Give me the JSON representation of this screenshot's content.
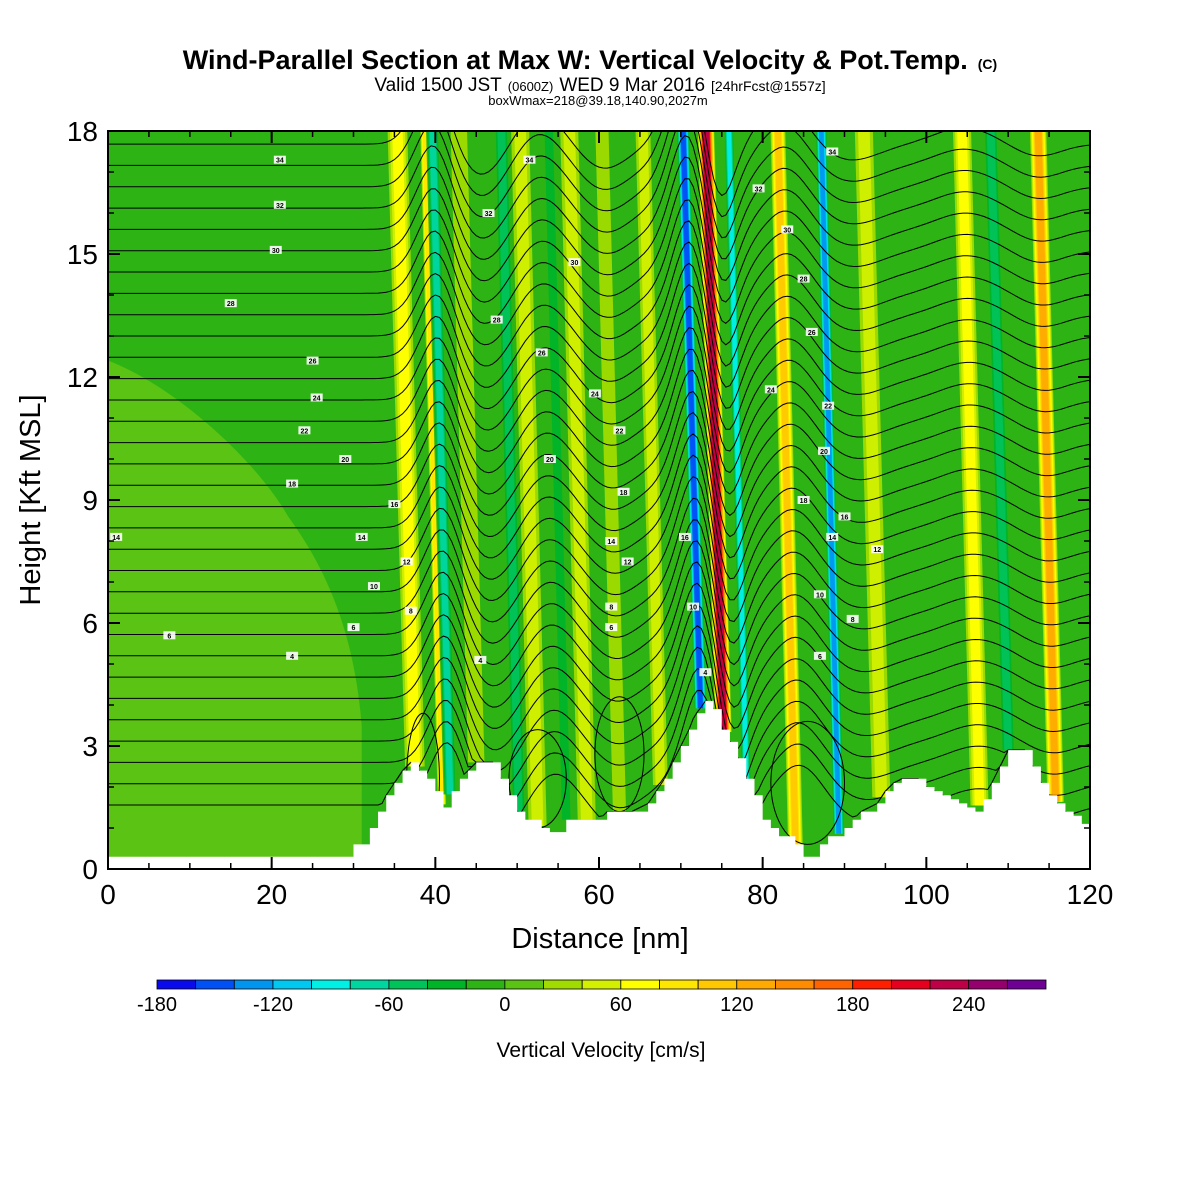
{
  "title": {
    "main": "Wind-Parallel Section at Max W: Vertical Velocity & Pot.Temp.",
    "copyright": "(C)",
    "valid": "Valid 1500 JST",
    "utc": "(0600Z)",
    "date": "WED 9 Mar 2016",
    "forecast": "[24hrFcst@1557z]",
    "boxinfo": "boxWmax=218@39.18,140.90,2027m"
  },
  "chart_data": {
    "type": "heatmap",
    "title": "Wind-Parallel Section at Max W: Vertical Velocity & Pot.Temp.",
    "xlabel": "Distance [nm]",
    "ylabel": "Height [Kft MSL]",
    "xlim": [
      0,
      120
    ],
    "ylim": [
      0,
      18
    ],
    "x_ticks": [
      0,
      20,
      40,
      60,
      80,
      100,
      120
    ],
    "y_ticks": [
      0,
      3,
      6,
      9,
      12,
      15,
      18
    ],
    "colorbar": {
      "title": "Vertical Velocity [cm/s]",
      "min": -180,
      "step": 20,
      "tick_labels": [
        "-180",
        "-120",
        "-60",
        "0",
        "60",
        "120",
        "180",
        "240"
      ],
      "tick_values": [
        -180,
        -120,
        -60,
        0,
        60,
        120,
        180,
        240
      ],
      "colors": [
        "#0a0aee",
        "#0050f5",
        "#0096f0",
        "#00c8f0",
        "#00f0e6",
        "#00d7a0",
        "#00c35a",
        "#00b428",
        "#2db414",
        "#5ac314",
        "#a0dc00",
        "#d2f000",
        "#ffff00",
        "#ffe600",
        "#ffc800",
        "#ffaa00",
        "#ff8c00",
        "#ff6400",
        "#ff1e00",
        "#e6001e",
        "#be0046",
        "#96006e",
        "#6e0096"
      ]
    },
    "terrain_kft": [
      [
        0,
        0.3
      ],
      [
        29,
        0.3
      ],
      [
        30,
        0.6
      ],
      [
        32,
        1.0
      ],
      [
        33,
        1.4
      ],
      [
        34,
        1.8
      ],
      [
        35,
        2.1
      ],
      [
        36,
        2.4
      ],
      [
        37,
        2.6
      ],
      [
        38,
        2.4
      ],
      [
        39,
        2.2
      ],
      [
        40,
        1.9
      ],
      [
        41,
        1.5
      ],
      [
        42,
        1.9
      ],
      [
        43,
        2.2
      ],
      [
        44,
        2.4
      ],
      [
        45,
        2.6
      ],
      [
        47,
        2.6
      ],
      [
        48,
        2.2
      ],
      [
        49,
        1.8
      ],
      [
        50,
        1.4
      ],
      [
        51,
        1.2
      ],
      [
        53,
        1.0
      ],
      [
        54,
        0.9
      ],
      [
        55,
        0.9
      ],
      [
        56,
        1.2
      ],
      [
        60,
        1.2
      ],
      [
        61,
        1.4
      ],
      [
        64,
        1.4
      ],
      [
        66,
        1.6
      ],
      [
        67,
        1.9
      ],
      [
        68,
        2.2
      ],
      [
        69,
        2.6
      ],
      [
        70,
        3.0
      ],
      [
        71,
        3.4
      ],
      [
        72,
        3.8
      ],
      [
        73,
        4.1
      ],
      [
        74,
        3.9
      ],
      [
        75,
        3.4
      ],
      [
        76,
        3.1
      ],
      [
        77,
        2.7
      ],
      [
        78,
        2.2
      ],
      [
        79,
        1.8
      ],
      [
        80,
        1.2
      ],
      [
        81,
        1.0
      ],
      [
        82,
        0.8
      ],
      [
        83,
        0.8
      ],
      [
        84,
        0.6
      ],
      [
        85,
        0.3
      ],
      [
        86,
        0.3
      ],
      [
        87,
        0.6
      ],
      [
        88,
        0.8
      ],
      [
        89,
        0.8
      ],
      [
        90,
        1.0
      ],
      [
        91,
        1.2
      ],
      [
        92,
        1.4
      ],
      [
        94,
        1.6
      ],
      [
        95,
        1.9
      ],
      [
        96,
        2.1
      ],
      [
        97,
        2.2
      ],
      [
        99,
        2.2
      ],
      [
        100,
        2.0
      ],
      [
        101,
        1.9
      ],
      [
        102,
        1.8
      ],
      [
        103,
        1.7
      ],
      [
        104,
        1.6
      ],
      [
        105,
        1.5
      ],
      [
        106,
        1.4
      ],
      [
        107,
        1.7
      ],
      [
        108,
        2.1
      ],
      [
        109,
        2.5
      ],
      [
        110,
        2.9
      ],
      [
        112,
        2.9
      ],
      [
        113,
        2.5
      ],
      [
        114,
        2.1
      ],
      [
        115,
        1.8
      ],
      [
        116,
        1.6
      ],
      [
        117,
        1.4
      ],
      [
        118,
        1.3
      ],
      [
        119,
        1.1
      ],
      [
        120,
        1.1
      ]
    ],
    "updraft_bands": [
      {
        "x": 37.5,
        "width": 2.4,
        "w_cm_s": 60
      },
      {
        "x": 40.8,
        "width": 1.0,
        "w_cm_s": 80
      },
      {
        "x": 45.0,
        "width": 2.0,
        "w_cm_s": 20
      },
      {
        "x": 52.5,
        "width": 2.2,
        "w_cm_s": 40
      },
      {
        "x": 58.5,
        "width": 2.2,
        "w_cm_s": 40
      },
      {
        "x": 62.5,
        "width": 1.6,
        "w_cm_s": 20
      },
      {
        "x": 67.5,
        "width": 1.8,
        "w_cm_s": 40
      },
      {
        "x": 75.2,
        "width": 2.0,
        "w_cm_s": 210
      },
      {
        "x": 84.0,
        "width": 1.8,
        "w_cm_s": 100
      },
      {
        "x": 94.5,
        "width": 2.2,
        "w_cm_s": 40
      },
      {
        "x": 106.5,
        "width": 2.2,
        "w_cm_s": 60
      },
      {
        "x": 115.8,
        "width": 2.0,
        "w_cm_s": 110
      }
    ],
    "downdraft_bands": [
      {
        "x": 41.8,
        "width": 1.6,
        "w_cm_s": -80
      },
      {
        "x": 50.2,
        "width": 1.8,
        "w_cm_s": -60
      },
      {
        "x": 56.0,
        "width": 1.6,
        "w_cm_s": -40
      },
      {
        "x": 72.4,
        "width": 1.6,
        "w_cm_s": -150
      },
      {
        "x": 78.0,
        "width": 1.2,
        "w_cm_s": -100
      },
      {
        "x": 89.3,
        "width": 1.4,
        "w_cm_s": -130
      },
      {
        "x": 110.0,
        "width": 1.8,
        "w_cm_s": -60
      }
    ],
    "contour_interval_theta": 2,
    "contour_labels": [
      {
        "x": 21,
        "y": 17.3,
        "text": "34"
      },
      {
        "x": 21,
        "y": 16.2,
        "text": "32"
      },
      {
        "x": 20.5,
        "y": 15.1,
        "text": "30"
      },
      {
        "x": 15,
        "y": 13.8,
        "text": "28"
      },
      {
        "x": 25,
        "y": 12.4,
        "text": "26"
      },
      {
        "x": 25.5,
        "y": 11.5,
        "text": "24"
      },
      {
        "x": 24,
        "y": 10.7,
        "text": "22"
      },
      {
        "x": 29,
        "y": 10.0,
        "text": "20"
      },
      {
        "x": 22.5,
        "y": 9.4,
        "text": "18"
      },
      {
        "x": 35,
        "y": 8.9,
        "text": "16"
      },
      {
        "x": 31,
        "y": 8.1,
        "text": "14"
      },
      {
        "x": 1,
        "y": 8.1,
        "text": "14"
      },
      {
        "x": 36.5,
        "y": 7.5,
        "text": "12"
      },
      {
        "x": 32.5,
        "y": 6.9,
        "text": "10"
      },
      {
        "x": 37,
        "y": 6.3,
        "text": "8"
      },
      {
        "x": 30,
        "y": 5.9,
        "text": "6"
      },
      {
        "x": 7.5,
        "y": 5.7,
        "text": "6"
      },
      {
        "x": 22.5,
        "y": 5.2,
        "text": "4"
      },
      {
        "x": 45.5,
        "y": 5.1,
        "text": "4"
      },
      {
        "x": 51.5,
        "y": 17.3,
        "text": "34"
      },
      {
        "x": 46.5,
        "y": 16.0,
        "text": "32"
      },
      {
        "x": 57,
        "y": 14.8,
        "text": "30"
      },
      {
        "x": 47.5,
        "y": 13.4,
        "text": "28"
      },
      {
        "x": 53,
        "y": 12.6,
        "text": "26"
      },
      {
        "x": 59.5,
        "y": 11.6,
        "text": "24"
      },
      {
        "x": 62.5,
        "y": 10.7,
        "text": "22"
      },
      {
        "x": 54,
        "y": 10.0,
        "text": "20"
      },
      {
        "x": 63,
        "y": 9.2,
        "text": "18"
      },
      {
        "x": 61.5,
        "y": 8.0,
        "text": "14"
      },
      {
        "x": 63.5,
        "y": 7.5,
        "text": "12"
      },
      {
        "x": 61.5,
        "y": 6.4,
        "text": "8"
      },
      {
        "x": 61.5,
        "y": 5.9,
        "text": "6"
      },
      {
        "x": 70.5,
        "y": 8.1,
        "text": "16"
      },
      {
        "x": 71.5,
        "y": 6.4,
        "text": "10"
      },
      {
        "x": 73,
        "y": 4.8,
        "text": "4"
      },
      {
        "x": 88.5,
        "y": 17.5,
        "text": "34"
      },
      {
        "x": 79.5,
        "y": 16.6,
        "text": "32"
      },
      {
        "x": 83,
        "y": 15.6,
        "text": "30"
      },
      {
        "x": 85,
        "y": 14.4,
        "text": "28"
      },
      {
        "x": 86,
        "y": 13.1,
        "text": "26"
      },
      {
        "x": 81,
        "y": 11.7,
        "text": "24"
      },
      {
        "x": 88,
        "y": 11.3,
        "text": "22"
      },
      {
        "x": 87.5,
        "y": 10.2,
        "text": "20"
      },
      {
        "x": 85,
        "y": 9.0,
        "text": "18"
      },
      {
        "x": 90,
        "y": 8.6,
        "text": "16"
      },
      {
        "x": 88.5,
        "y": 8.1,
        "text": "14"
      },
      {
        "x": 94,
        "y": 7.8,
        "text": "12"
      },
      {
        "x": 87,
        "y": 6.7,
        "text": "10"
      },
      {
        "x": 91,
        "y": 6.1,
        "text": "8"
      },
      {
        "x": 87,
        "y": 5.2,
        "text": "6"
      }
    ]
  }
}
